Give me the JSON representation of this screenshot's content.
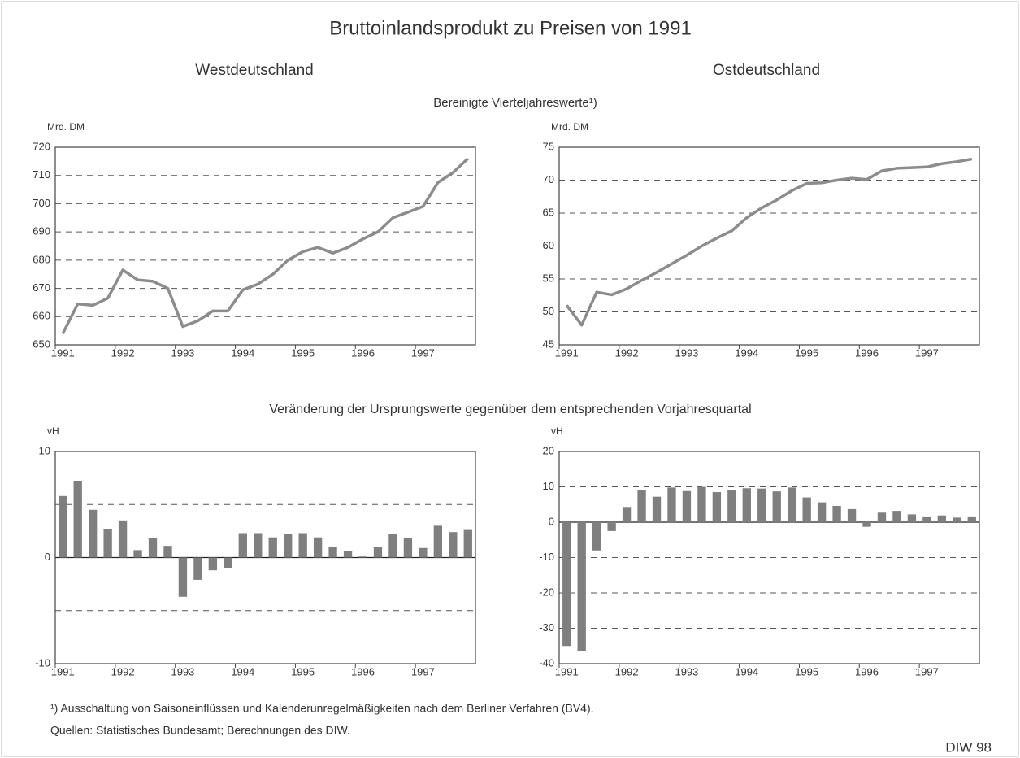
{
  "title": "Bruttoinlandsprodukt zu Preisen von 1991",
  "headers": [
    "Westdeutschland",
    "Ostdeutschland"
  ],
  "subtitle_top": "Bereinigte Vierteljahreswerte¹)",
  "subtitle_bottom": "Veränderung der Ursprungswerte gegenüber dem entsprechenden Vorjahresquartal",
  "footnotes": [
    "¹) Ausschaltung von Saisoneinflüssen und Kalenderunregelmäßigkeiten nach dem Berliner Verfahren (BV4).",
    "Quellen: Statistisches Bundesamt; Berechnungen des DIW."
  ],
  "source_tag": "DIW 98",
  "chart_data": [
    {
      "type": "line",
      "y_label": "Mrd. DM",
      "color": "#8c8c8c",
      "grid": true,
      "categories": [
        "1991",
        null,
        null,
        null,
        "1992",
        null,
        null,
        null,
        "1993",
        null,
        null,
        null,
        "1994",
        null,
        null,
        null,
        "1995",
        null,
        null,
        null,
        "1996",
        null,
        null,
        null,
        "1997",
        null,
        null,
        null
      ],
      "values": [
        654,
        664.5,
        664,
        666.5,
        676.5,
        673,
        672.5,
        670,
        656.5,
        658.5,
        662,
        662,
        669.5,
        671.5,
        675,
        680,
        683,
        684.5,
        682.5,
        684.5,
        687.5,
        690,
        695,
        697,
        699,
        707.5,
        711,
        716
      ],
      "ylim": [
        650,
        720
      ],
      "yticks": [
        650,
        660,
        670,
        680,
        690,
        700,
        710,
        720
      ]
    },
    {
      "type": "line",
      "y_label": "Mrd. DM",
      "color": "#8c8c8c",
      "grid": true,
      "categories": [
        "1991",
        null,
        null,
        null,
        "1992",
        null,
        null,
        null,
        "1993",
        null,
        null,
        null,
        "1994",
        null,
        null,
        null,
        "1995",
        null,
        null,
        null,
        "1996",
        null,
        null,
        null,
        "1997",
        null,
        null,
        null
      ],
      "values": [
        51,
        48,
        53,
        52.6,
        53.5,
        54.8,
        56,
        57.3,
        58.6,
        60,
        61.2,
        62.3,
        64.3,
        65.8,
        67,
        68.4,
        69.5,
        69.6,
        70,
        70.3,
        70.1,
        71.4,
        71.8,
        71.9,
        72,
        72.5,
        72.8,
        73.2
      ],
      "ylim": [
        45,
        75
      ],
      "yticks": [
        45,
        50,
        55,
        60,
        65,
        70,
        75
      ]
    },
    {
      "type": "bar",
      "y_label": "vH",
      "color": "#7f7f7f",
      "grid": true,
      "categories": [
        "1991",
        null,
        null,
        null,
        "1992",
        null,
        null,
        null,
        "1993",
        null,
        null,
        null,
        "1994",
        null,
        null,
        null,
        "1995",
        null,
        null,
        null,
        "1996",
        null,
        null,
        null,
        "1997",
        null,
        null,
        null
      ],
      "values": [
        5.8,
        7.2,
        4.5,
        2.7,
        3.5,
        0.7,
        1.8,
        1.1,
        -3.7,
        -2.1,
        -1.2,
        -1.0,
        2.3,
        2.3,
        1.9,
        2.2,
        2.3,
        1.9,
        1.0,
        0.6,
        0.1,
        1.0,
        2.2,
        1.8,
        0.9,
        3.0,
        2.4,
        2.6
      ],
      "ylim": [
        -10,
        10
      ],
      "yticks": [
        -10,
        0,
        10
      ],
      "grid_lines": [
        -5,
        5
      ]
    },
    {
      "type": "bar",
      "y_label": "vH",
      "color": "#7f7f7f",
      "grid": true,
      "categories": [
        "1991",
        null,
        null,
        null,
        "1992",
        null,
        null,
        null,
        "1993",
        null,
        null,
        null,
        "1994",
        null,
        null,
        null,
        "1995",
        null,
        null,
        null,
        "1996",
        null,
        null,
        null,
        "1997",
        null,
        null,
        null
      ],
      "values": [
        -35,
        -36.5,
        -8,
        -2.5,
        4.3,
        9,
        7.2,
        9.8,
        8.8,
        10,
        8.5,
        9,
        9.6,
        9.5,
        8.7,
        9.8,
        7,
        5.6,
        4.6,
        3.7,
        -1.3,
        2.7,
        3.2,
        2.2,
        1.4,
        1.9,
        1.3,
        1.4
      ],
      "ylim": [
        -40,
        20
      ],
      "yticks": [
        -40,
        -30,
        -20,
        -10,
        0,
        10,
        20
      ]
    }
  ]
}
